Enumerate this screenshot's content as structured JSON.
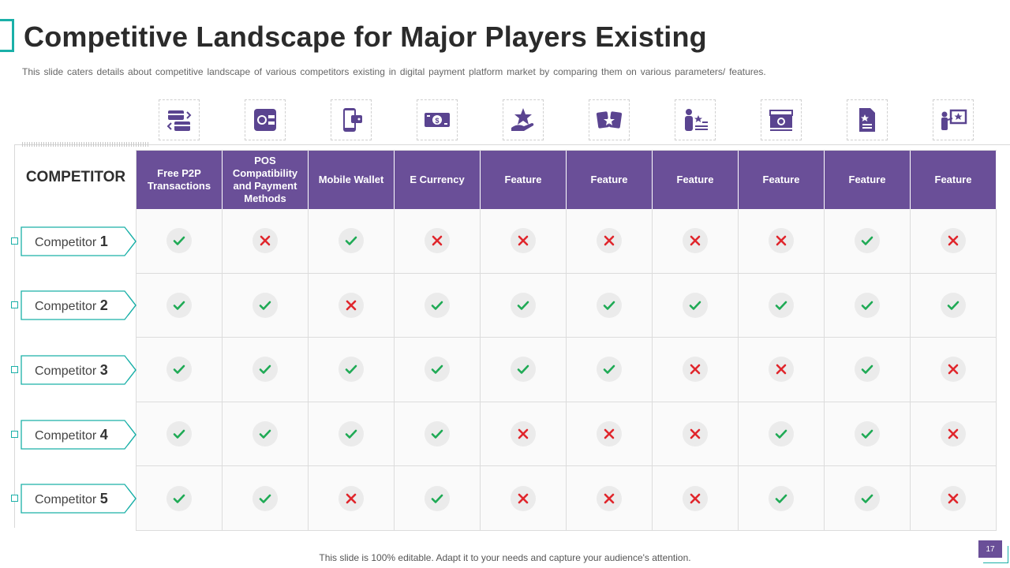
{
  "slide": {
    "title": "Competitive Landscape for Major Players Existing",
    "subtitle": "This slide caters details about competitive landscape of various competitors existing in digital payment platform market by comparing them on various parameters/ features.",
    "footer": "This slide is 100% editable. Adapt it to your needs and capture your audience's attention.",
    "page_number": "17"
  },
  "colors": {
    "header_bg": "#6a4f98",
    "accent": "#1ab0a8",
    "check": "#1faa55",
    "cross": "#e0262c",
    "icon": "#5a4490"
  },
  "table": {
    "corner_label": "COMPETITOR",
    "columns": [
      {
        "label": "Free P2P Transactions",
        "icon": "transfer-cards-icon"
      },
      {
        "label": "POS Compatibility and Payment Methods",
        "icon": "pos-phone-coins-icon"
      },
      {
        "label": "Mobile Wallet",
        "icon": "mobile-wallet-icon"
      },
      {
        "label": "E Currency",
        "icon": "banknote-icon"
      },
      {
        "label": "Feature",
        "icon": "hand-star-icon"
      },
      {
        "label": "Feature",
        "icon": "cards-star-icon"
      },
      {
        "label": "Feature",
        "icon": "person-rating-icon"
      },
      {
        "label": "Feature",
        "icon": "cash-stack-icon"
      },
      {
        "label": "Feature",
        "icon": "document-star-icon"
      },
      {
        "label": "Feature",
        "icon": "presentation-star-icon"
      }
    ],
    "rows": [
      {
        "name": "Competitor",
        "number": "1",
        "values": [
          true,
          false,
          true,
          false,
          false,
          false,
          false,
          false,
          true,
          false
        ]
      },
      {
        "name": "Competitor",
        "number": "2",
        "values": [
          true,
          true,
          false,
          true,
          true,
          true,
          true,
          true,
          true,
          true
        ]
      },
      {
        "name": "Competitor",
        "number": "3",
        "values": [
          true,
          true,
          true,
          true,
          true,
          true,
          false,
          false,
          true,
          false
        ]
      },
      {
        "name": "Competitor",
        "number": "4",
        "values": [
          true,
          true,
          true,
          true,
          false,
          false,
          false,
          true,
          true,
          false
        ]
      },
      {
        "name": "Competitor",
        "number": "5",
        "values": [
          true,
          true,
          false,
          true,
          false,
          false,
          false,
          true,
          true,
          false
        ]
      }
    ]
  }
}
